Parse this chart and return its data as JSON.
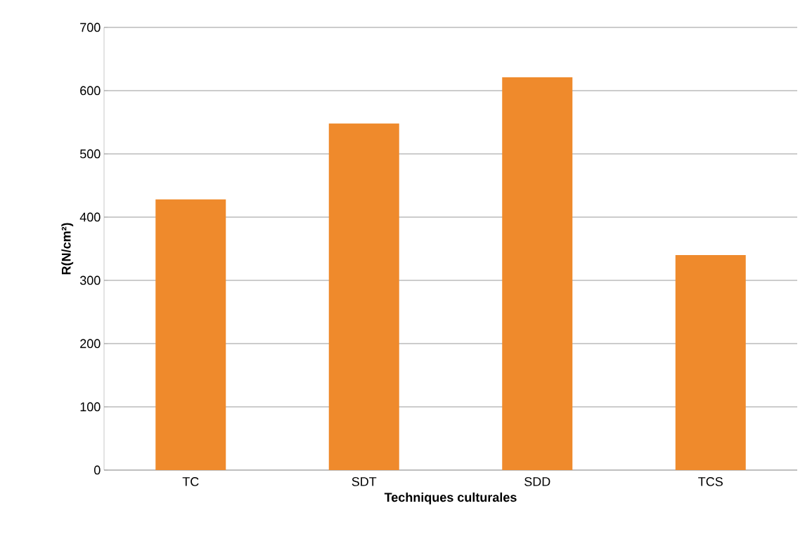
{
  "chart_data": {
    "type": "bar",
    "xlabel": "Techniques culturales",
    "ylabel": "R(N/cm²)",
    "categories": [
      "TC",
      "SDT",
      "SDD",
      "TCS"
    ],
    "values": [
      428,
      548,
      621,
      340
    ],
    "color": "#ef8a2c",
    "ylim": [
      0,
      700
    ],
    "yticks": [
      0,
      100,
      200,
      300,
      400,
      500,
      600,
      700
    ],
    "grid": "y"
  }
}
